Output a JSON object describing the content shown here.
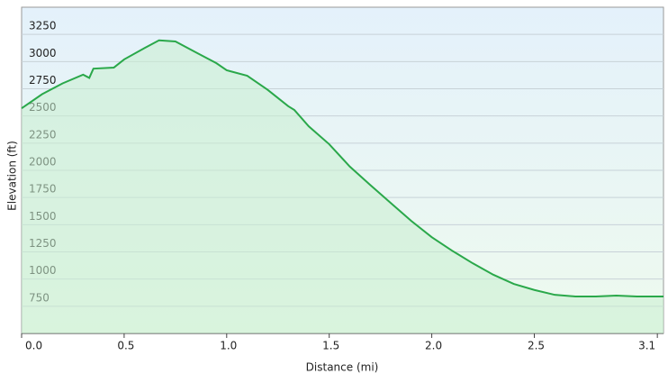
{
  "chart_data": {
    "type": "line",
    "x_label": "Distance  (mi)",
    "y_label": "Elevation (ft)",
    "series": [
      {
        "color": "#2aa84a",
        "x": [
          0.0,
          0.1,
          0.2,
          0.3,
          0.33,
          0.35,
          0.45,
          0.5,
          0.6,
          0.67,
          0.75,
          0.85,
          0.95,
          1.0,
          1.1,
          1.2,
          1.3,
          1.33,
          1.4,
          1.5,
          1.6,
          1.7,
          1.8,
          1.9,
          2.0,
          2.1,
          2.2,
          2.3,
          2.4,
          2.5,
          2.6,
          2.7,
          2.8,
          2.9,
          3.0,
          3.13
        ],
        "values": [
          2570,
          2700,
          2800,
          2880,
          2850,
          2935,
          2945,
          3020,
          3125,
          3195,
          3185,
          3085,
          2985,
          2920,
          2870,
          2740,
          2590,
          2555,
          2405,
          2240,
          2035,
          1865,
          1700,
          1535,
          1385,
          1260,
          1145,
          1040,
          955,
          900,
          855,
          840,
          840,
          848,
          840,
          840
        ]
      }
    ],
    "xlim": [
      0,
      3.13
    ],
    "xticks": [
      {
        "value": 0,
        "label": "0.0"
      },
      0.5,
      {
        "value": 1,
        "label": "1.0"
      },
      1.5,
      {
        "value": 2,
        "label": "2.0"
      },
      2.5,
      3.1
    ],
    "ylim": [
      500,
      3500
    ],
    "yticks": [
      750,
      1000,
      1250,
      1500,
      1750,
      2000,
      2250,
      2500,
      2750,
      3000,
      3250
    ],
    "grid": true
  }
}
